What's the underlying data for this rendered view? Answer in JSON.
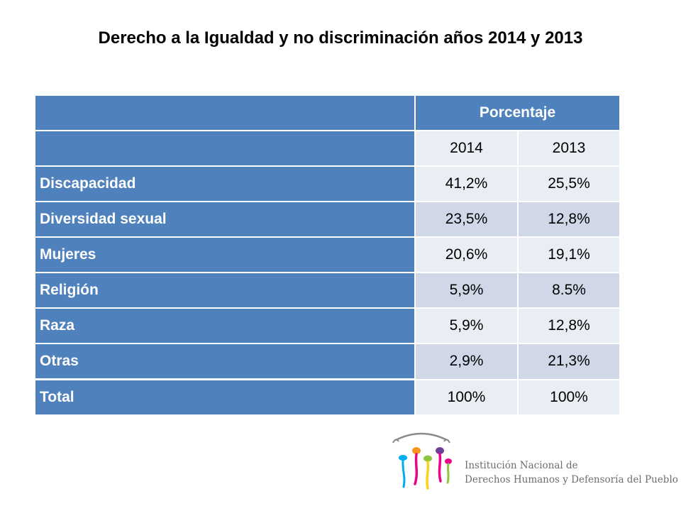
{
  "title": "Derecho a la Igualdad y no discriminación años 2014 y 2013",
  "table": {
    "group_header": "Porcentaje",
    "years": [
      "2014",
      "2013"
    ],
    "rows": [
      {
        "label": "Discapacidad",
        "v2014": "41,2%",
        "v2013": "25,5%"
      },
      {
        "label": "Diversidad sexual",
        "v2014": "23,5%",
        "v2013": "12,8%"
      },
      {
        "label": "Mujeres",
        "v2014": "20,6%",
        "v2013": "19,1%"
      },
      {
        "label": "Religión",
        "v2014": "5,9%",
        "v2013": "8.5%"
      },
      {
        "label": "Raza",
        "v2014": "5,9%",
        "v2013": "12,8%"
      },
      {
        "label": "Otras",
        "v2014": "2,9%",
        "v2013": "21,3%"
      },
      {
        "label": "Total",
        "v2014": "100%",
        "v2013": "100%"
      }
    ]
  },
  "logo": {
    "line1": "Institución Nacional de",
    "line2": "Derechos Humanos y Defensoría del Pueblo",
    "colors": [
      "#f7941d",
      "#ec008c",
      "#8dc63f",
      "#6d3f98",
      "#00aeef",
      "#fcd116"
    ]
  }
}
